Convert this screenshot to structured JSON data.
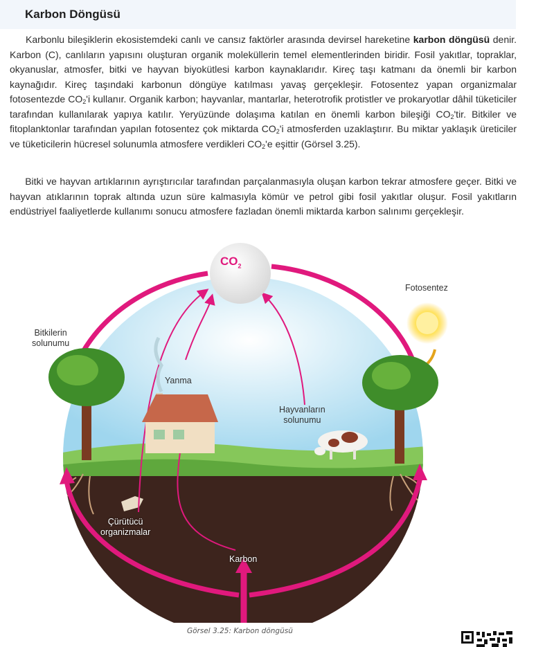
{
  "heading": "Karbon Döngüsü",
  "p1": {
    "s1": "Karbonlu bileşiklerin ekosistemdeki canlı ve cansız faktörler arasında devirsel hareketine ",
    "b1": "karbon döngüsü",
    "s2": " denir. Karbon (C), canlıların yapısını oluşturan organik moleküllerin temel elementlerinden biridir. Fosil yakıtlar, topraklar, okyanuslar, atmosfer, bitki ve hayvan biyokütlesi karbon kaynaklarıdır. Kireç taşı katmanı da önemli bir karbon kaynağıdır. Kireç taşındaki karbonun döngüye katılması yavaş gerçekleşir. Fotosentez yapan organizmalar fotosentezde CO",
    "sub1": "2",
    "s3": "'i kullanır. Organik karbon; hayvanlar, mantarlar, heterotrofik protistler ve prokaryotlar dâhil tüketiciler tarafından kullanılarak yapıya katılır. Yeryüzünde dolaşıma katılan en önemli karbon bileşiği CO",
    "sub2": "2",
    "s4": "'tir. Bitkiler ve fitoplanktonlar tarafından yapılan fotosentez çok miktarda CO",
    "sub3": "2",
    "s5": "'i atmosferden uzaklaştırır. Bu miktar yaklaşık üreticiler ve tüketicilerin hücresel solunumla atmosfere verdikleri CO",
    "sub4": "2",
    "s6": "'e eşittir (Görsel 3.25)."
  },
  "p2": "Bitki ve hayvan artıklarının ayrıştırıcılar tarafından parçalanmasıyla oluşan karbon tekrar atmosfere geçer. Bitki ve hayvan atıklarının toprak altında uzun süre kalmasıyla kömür ve petrol gibi fosil yakıtlar oluşur. Fosil yakıtların endüstriyel faaliyetlerde kullanımı sonucu atmosfere fazladan önemli miktarda karbon salınımı gerçekleşir.",
  "diagram": {
    "co2_main": "CO",
    "co2_sub": "2",
    "fotosentez": "Fotosentez",
    "bitkilerin": "Bitkilerin",
    "solunumu1": "solunumu",
    "yanma": "Yanma",
    "hayvanlarin": "Hayvanların",
    "solunumu2": "solunumu",
    "curutucu": "Çürütücü",
    "organizmalar": "organizmalar",
    "karbon": "Karbon"
  },
  "caption": "Görsel 3.25: Karbon döngüsü",
  "colors": {
    "arrow": "#e0197d",
    "sky": "#bfe3f3",
    "soil": "#3d241d",
    "grass": "#77bf4c"
  }
}
